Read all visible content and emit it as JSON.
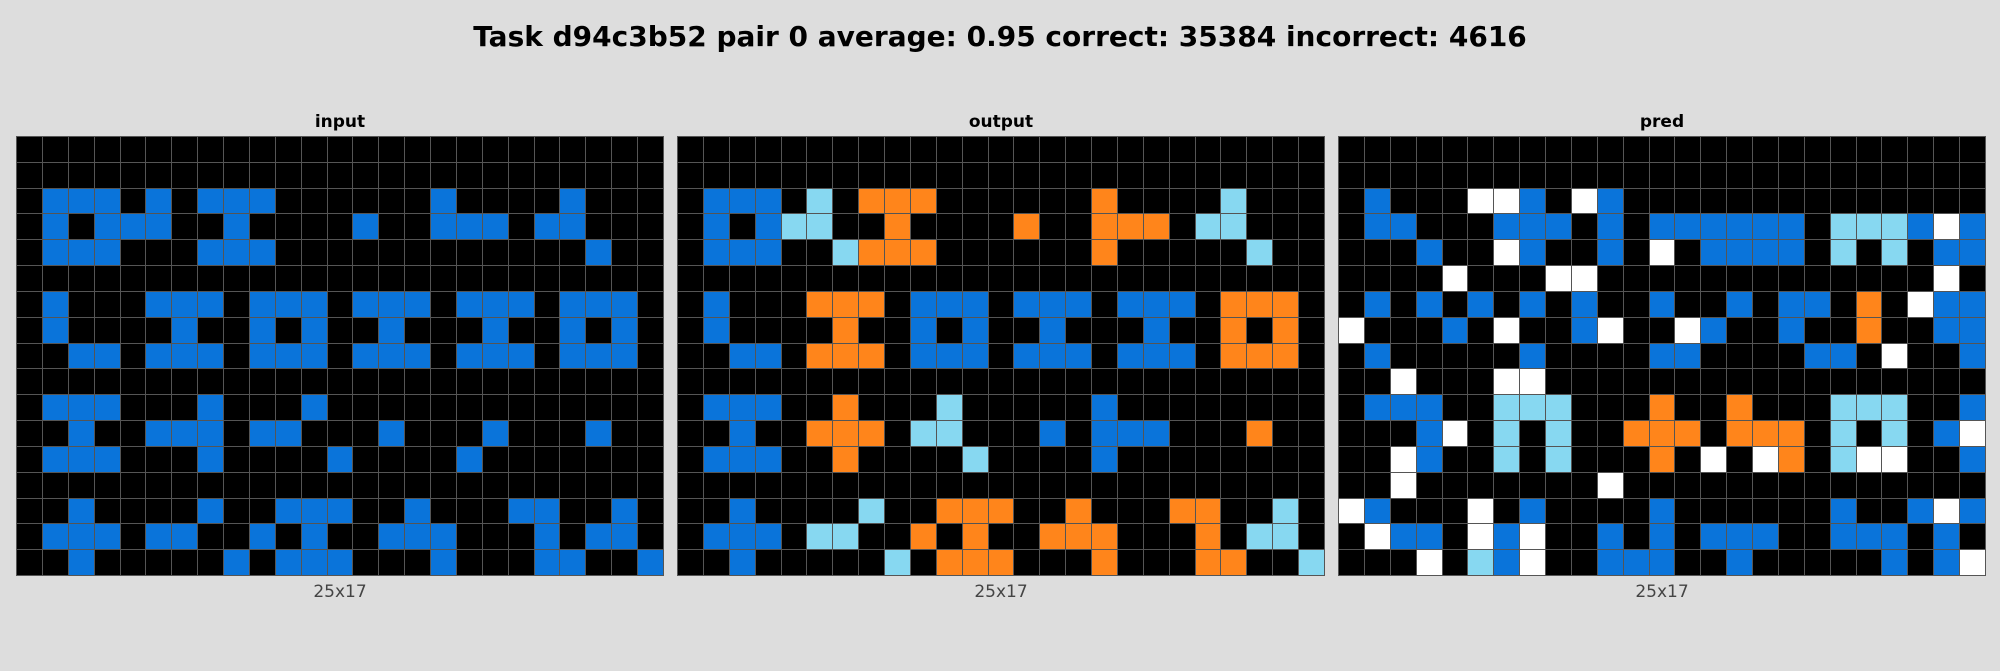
{
  "title": "Task d94c3b52 pair 0 average: 0.95 correct: 35384 incorrect: 4616",
  "palette": {
    "0": "#000000",
    "1": "#0a74da",
    "7": "#ff851b",
    "8": "#87d8f1",
    "9": "#ffffff"
  },
  "panels": [
    {
      "label": "input",
      "dims": "25x17",
      "grid": [
        "0000000000000000000000000",
        "0000000000000000000000000",
        "0111010111000000100001000",
        "0101110010000100111011000",
        "0111000111000000000000100",
        "0000000000000000000000000",
        "0100011101110111011101110",
        "0100001001010010001001010",
        "0011011101110111011101110",
        "0000000000000000000000000",
        "0111000100010000000000000",
        "0010011101100010001000100",
        "0111000100001000010000000",
        "0000000000000000000000000",
        "0010000100111001000110010",
        "0111011001010011100010110",
        "0010000010111000100011001"
      ]
    },
    {
      "label": "output",
      "dims": "25x17",
      "grid": [
        "0000000000000000000000000",
        "0000000000000000000000000",
        "0111080777000000700008000",
        "0101880070000700777088000",
        "0111008777000000700000800",
        "0000000000000000000000000",
        "0100077701110111011107770",
        "0100007001010010001007070",
        "0011077701110111011107770",
        "0000000000000000000000000",
        "0111007000800000100000000",
        "0010077708800010111000700",
        "0111007000080000100000000",
        "0000000000000000000000000",
        "0010000800777007000770080",
        "0111088007070077700070880",
        "0010000080777000700077008"
      ]
    },
    {
      "label": "pred",
      "dims": "25x17",
      "grid": [
        "0000000000000000000000000",
        "0000000000000000000000000",
        "0100099109100000000000000",
        "0110001110101111110888191",
        "0001009100109011110808011",
        "0000900099000000000000090",
        "0101010101001001011070911",
        "9000109001900910010070011",
        "0100000100001100001109001",
        "0090009900000000000000000",
        "0111008880007007000888001",
        "0001908080077707770808019",
        "0091008080007090970899001",
        "0090000000900000000000000",
        "9100090100001000000100191",
        "0911091900101011100111010",
        "0009081900111001000001019"
      ]
    }
  ]
}
